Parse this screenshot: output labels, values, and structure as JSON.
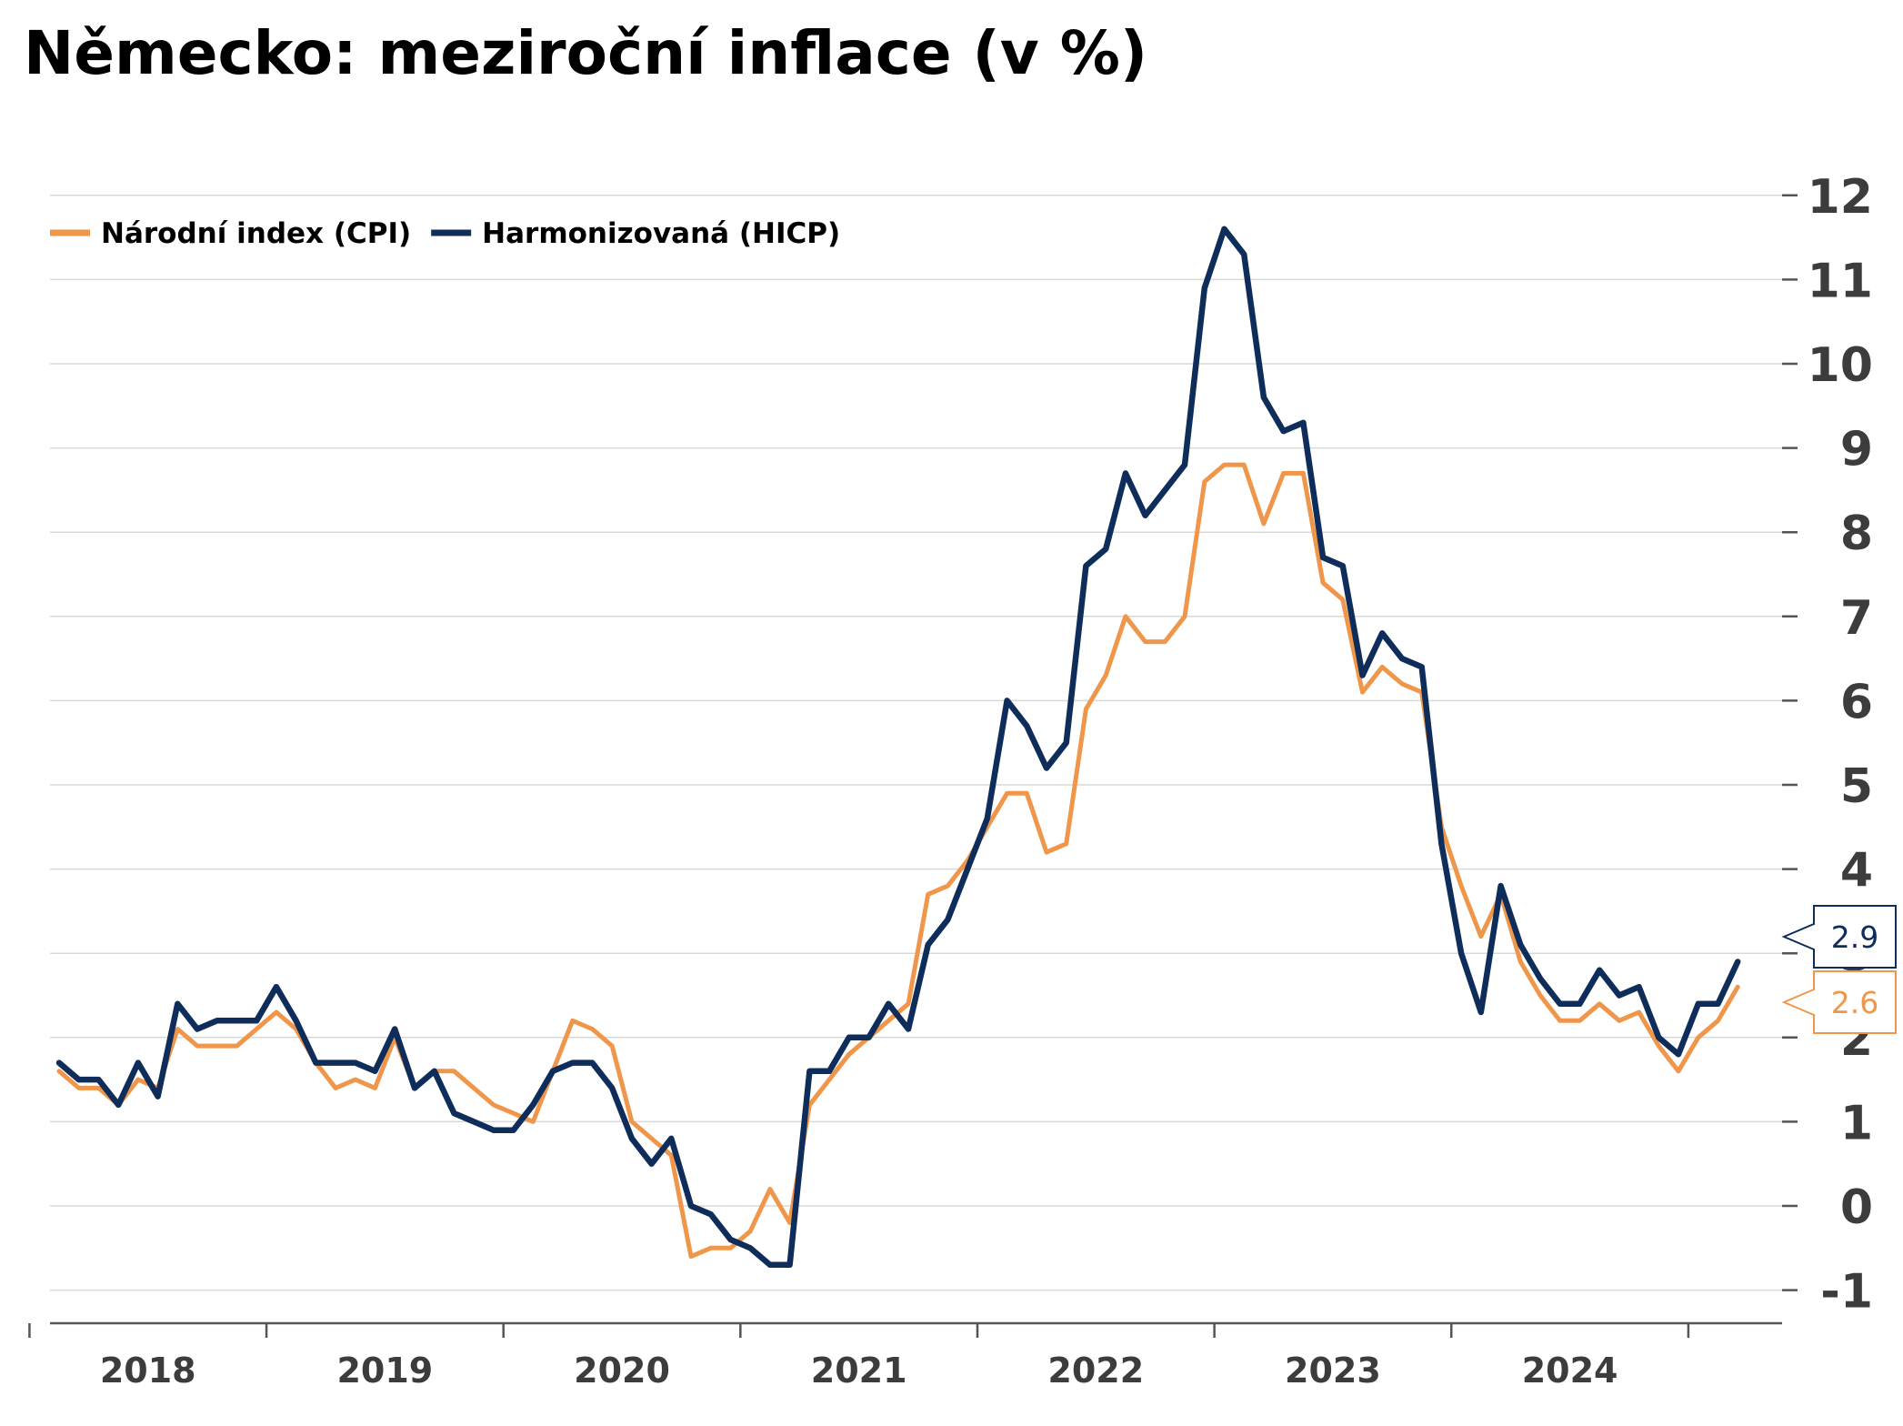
{
  "title": "Německo: meziroční inflace (v %)",
  "colors": {
    "cpi": "#F0964A",
    "hicp": "#0E2D5A",
    "grid": "#d9d9d9",
    "axis": "#555555"
  },
  "chart_data": {
    "type": "line",
    "title": "Německo: meziroční inflace (v %)",
    "xlabel": "",
    "ylabel": "",
    "x_start": "2018-01",
    "x_end": "2024-12",
    "frequency": "monthly",
    "ylim": [
      -1.4,
      12
    ],
    "yticks": [
      "-1",
      "0",
      "1",
      "2",
      "3",
      "4",
      "5",
      "6",
      "7",
      "8",
      "9",
      "10",
      "11",
      "12"
    ],
    "xticks": [
      "2018",
      "2019",
      "2020",
      "2021",
      "2022",
      "2023",
      "2024"
    ],
    "grid": true,
    "legend_position": "top-left",
    "y_axis_side": "right",
    "series": [
      {
        "name": "Národní index (CPI)",
        "color": "#F0964A",
        "values": [
          1.6,
          1.4,
          1.4,
          1.2,
          1.5,
          1.4,
          2.1,
          1.9,
          1.9,
          1.9,
          2.1,
          2.3,
          2.1,
          1.7,
          1.4,
          1.5,
          1.4,
          2.0,
          1.4,
          1.6,
          1.6,
          1.4,
          1.2,
          1.1,
          1.0,
          1.6,
          2.2,
          2.1,
          1.9,
          1.0,
          0.8,
          0.6,
          -0.6,
          -0.5,
          -0.5,
          -0.3,
          0.2,
          -0.2,
          1.2,
          1.5,
          1.8,
          2.0,
          2.2,
          2.4,
          3.7,
          3.8,
          4.1,
          4.5,
          4.9,
          4.9,
          4.2,
          4.3,
          5.9,
          6.3,
          7.0,
          6.7,
          6.7,
          7.0,
          8.6,
          8.8,
          8.8,
          8.1,
          8.7,
          8.7,
          7.4,
          7.2,
          6.1,
          6.4,
          6.2,
          6.1,
          4.5,
          3.8,
          3.2,
          3.7,
          2.9,
          2.5,
          2.2,
          2.2,
          2.4,
          2.2,
          2.3,
          1.9,
          1.6,
          2.0,
          2.2,
          2.6
        ]
      },
      {
        "name": "Harmonizovaná (HICP)",
        "color": "#0E2D5A",
        "values": [
          1.7,
          1.5,
          1.5,
          1.2,
          1.7,
          1.3,
          2.4,
          2.1,
          2.2,
          2.2,
          2.2,
          2.6,
          2.2,
          1.7,
          1.7,
          1.7,
          1.6,
          2.1,
          1.4,
          1.6,
          1.1,
          1.0,
          0.9,
          0.9,
          1.2,
          1.6,
          1.7,
          1.7,
          1.4,
          0.8,
          0.5,
          0.8,
          0.0,
          -0.1,
          -0.4,
          -0.5,
          -0.7,
          -0.7,
          1.6,
          1.6,
          2.0,
          2.0,
          2.4,
          2.1,
          3.1,
          3.4,
          4.0,
          4.6,
          6.0,
          5.7,
          5.2,
          5.5,
          7.6,
          7.8,
          8.7,
          8.2,
          8.5,
          8.8,
          10.9,
          11.6,
          11.3,
          9.6,
          9.2,
          9.3,
          7.7,
          7.6,
          6.3,
          6.8,
          6.5,
          6.4,
          4.3,
          3.0,
          2.3,
          3.8,
          3.1,
          2.7,
          2.4,
          2.4,
          2.8,
          2.5,
          2.6,
          2.0,
          1.8,
          2.4,
          2.4,
          2.9
        ]
      }
    ],
    "end_labels": [
      {
        "series": "Harmonizovaná (HICP)",
        "text": "2.9"
      },
      {
        "series": "Národní index (CPI)",
        "text": "2.6"
      }
    ]
  }
}
